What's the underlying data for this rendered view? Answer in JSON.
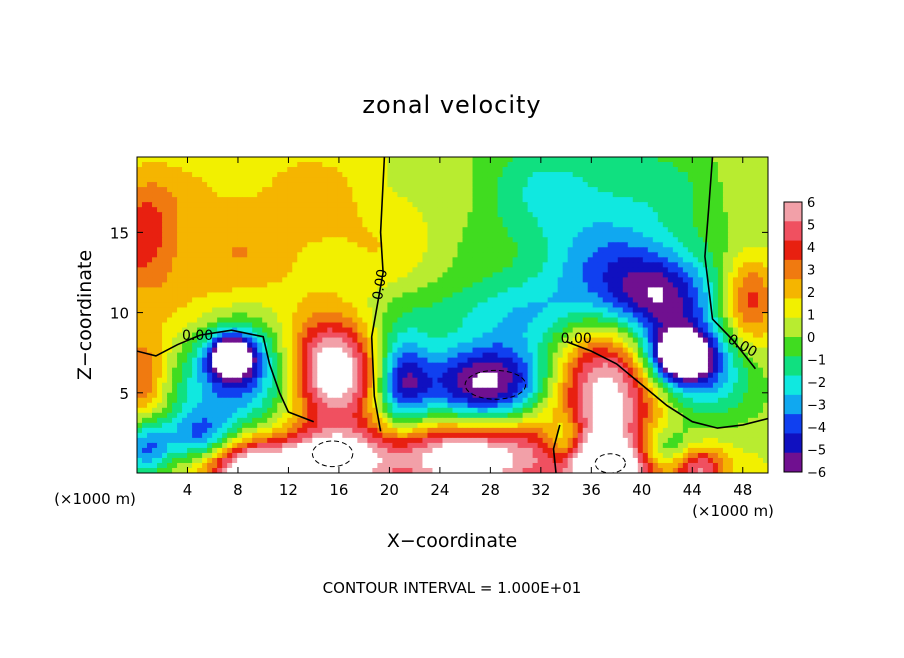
{
  "chart_data": {
    "type": "heatmap",
    "title": "zonal velocity",
    "xlabel": "X−coordinate",
    "ylabel": "Z−coordinate",
    "x_unit_left": "(×1000 m)",
    "x_unit_right": "(×1000 m)",
    "footer": "CONTOUR INTERVAL = 1.000E+01",
    "xlim": [
      0,
      50
    ],
    "ylim": [
      0,
      19.7
    ],
    "x_ticks": [
      4,
      8,
      12,
      16,
      20,
      24,
      28,
      32,
      36,
      40,
      44,
      48
    ],
    "y_ticks": [
      5,
      10,
      15
    ],
    "colorbar": {
      "range": [
        -6,
        6
      ],
      "ticks": [
        6,
        5,
        4,
        3,
        2,
        1,
        0,
        -1,
        -2,
        -3,
        -4,
        -5,
        -6
      ],
      "tick_labels": [
        "6",
        "5",
        "4",
        "3",
        "2",
        "1",
        "0",
        "−1",
        "−2",
        "−3",
        "−4",
        "−5",
        "−6"
      ],
      "colors": [
        "#f2a0a8",
        "#f05060",
        "#e82010",
        "#f07a10",
        "#f5b500",
        "#f2f000",
        "#b8ec30",
        "#40dc20",
        "#10e080",
        "#10e8e0",
        "#10a8f0",
        "#1040f0",
        "#1010c0",
        "#701090"
      ]
    },
    "contour_labels": [
      {
        "text": "0.00",
        "x": 4.8,
        "z": 8.3
      },
      {
        "text": "0.00",
        "x": 19.6,
        "z": 11.7,
        "rotate": -80
      },
      {
        "text": "0.00",
        "x": 34.8,
        "z": 8.1
      },
      {
        "text": "0.00",
        "x": 47.8,
        "z": 7.7,
        "rotate": 30
      }
    ],
    "field_features": [
      {
        "value": 1.5,
        "x": 12,
        "z": 16,
        "sx": 9,
        "sz": 3.5
      },
      {
        "value": 2.5,
        "x": 0.5,
        "z": 15,
        "sx": 1.8,
        "sz": 2.5
      },
      {
        "value": 1,
        "x": 4,
        "z": 12,
        "sx": 5,
        "sz": 2.5
      },
      {
        "value": -2.5,
        "x": 35,
        "z": 17.5,
        "sx": 7,
        "sz": 3
      },
      {
        "value": -3,
        "x": 37,
        "z": 12,
        "sx": 5,
        "sz": 2.5
      },
      {
        "value": -4.5,
        "x": 41.5,
        "z": 11,
        "sx": 3,
        "sz": 2
      },
      {
        "value": -2,
        "x": 28,
        "z": 10,
        "sx": 6,
        "sz": 1.5
      },
      {
        "value": 3.5,
        "x": 48.5,
        "z": 11,
        "sx": 1.5,
        "sz": 2
      },
      {
        "value": 3,
        "x": 0.5,
        "z": 6,
        "sx": 1.3,
        "sz": 1.8
      },
      {
        "value": -5,
        "x": 8,
        "z": 6,
        "sx": 3,
        "sz": 2.2
      },
      {
        "value": -7,
        "x": 7.5,
        "z": 7.3,
        "sx": 1.2,
        "sz": 0.9
      },
      {
        "value": 7,
        "x": 15.5,
        "z": 6.2,
        "sx": 2.5,
        "sz": 2.3
      },
      {
        "value": -5,
        "x": 21,
        "z": 5.5,
        "sx": 1.5,
        "sz": 2
      },
      {
        "value": -7,
        "x": 28,
        "z": 5.6,
        "sx": 4,
        "sz": 1.9
      },
      {
        "value": 7,
        "x": 37,
        "z": 5,
        "sx": 3.2,
        "sz": 2.8
      },
      {
        "value": -5,
        "x": 44,
        "z": 6.5,
        "sx": 2.8,
        "sz": 2
      },
      {
        "value": -7,
        "x": 43,
        "z": 7.3,
        "sx": 1.6,
        "sz": 1
      },
      {
        "value": -4,
        "x": 0.8,
        "z": 1.5,
        "sx": 1.3,
        "sz": 1.2
      },
      {
        "value": -4,
        "x": 5,
        "z": 2.2,
        "sx": 2,
        "sz": 1.2
      },
      {
        "value": 7,
        "x": 8.6,
        "z": 0.3,
        "sx": 2.4,
        "sz": 1.3
      },
      {
        "value": 7,
        "x": 15.2,
        "z": 0.6,
        "sx": 3.2,
        "sz": 1.4
      },
      {
        "value": 7,
        "x": 26.5,
        "z": 1.0,
        "sx": 5.2,
        "sz": 1.7
      },
      {
        "value": 7,
        "x": 37.5,
        "z": 0.4,
        "sx": 2.6,
        "sz": 1.3
      },
      {
        "value": 5,
        "x": 44.5,
        "z": 0.3,
        "sx": 1.5,
        "sz": 1
      },
      {
        "value": -4,
        "x": 34,
        "z": 2,
        "sx": 1.2,
        "sz": 1.2
      },
      {
        "value": -3,
        "x": 41.5,
        "z": 1.5,
        "sx": 2,
        "sz": 1
      }
    ]
  }
}
